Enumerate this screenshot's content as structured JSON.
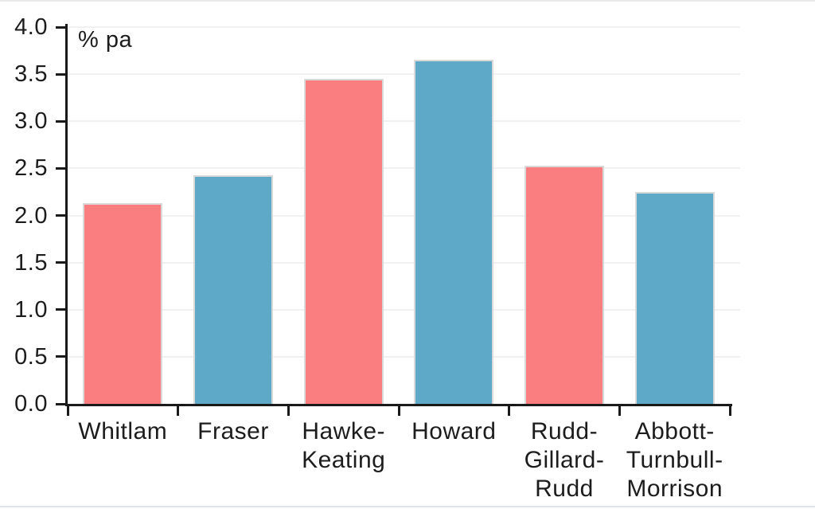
{
  "chart_data": {
    "type": "bar",
    "title": "",
    "unit_label": "% pa",
    "xlabel": "",
    "ylabel": "% pa",
    "categories": [
      "Whitlam",
      "Fraser",
      "Hawke-Keating",
      "Howard",
      "Rudd-Gillard-Rudd",
      "Abbott-Turnbull-Morrison"
    ],
    "tick_label_lines": [
      [
        "Whitlam"
      ],
      [
        "Fraser"
      ],
      [
        "Hawke-",
        "Keating"
      ],
      [
        "Howard"
      ],
      [
        "Rudd-",
        "Gillard-",
        "Rudd"
      ],
      [
        "Abbott-",
        "Turnbull-",
        "Morrison"
      ]
    ],
    "values": [
      2.13,
      2.43,
      3.45,
      3.65,
      2.53,
      2.25
    ],
    "bar_colors": [
      "#FA7D7F",
      "#5FA9C8",
      "#FA7D7F",
      "#5FA9C8",
      "#FA7D7F",
      "#5FA9C8"
    ],
    "bar_border_color": "#D9D9D9",
    "ylim": [
      0,
      4.0
    ],
    "ytick_labels": [
      "0.0",
      "0.5",
      "1.0",
      "1.5",
      "2.0",
      "2.5",
      "3.0",
      "3.5",
      "4.0"
    ],
    "yticks": [
      0,
      0.5,
      1.0,
      1.5,
      2.0,
      2.5,
      3.0,
      3.5,
      4.0
    ],
    "grid": "horizontal faint gridlines at each 0.5 step",
    "legend": "none",
    "axis_color": "#1a1a1a",
    "gridline_color": "#F2F0F1",
    "frame_top_color": "#E9E9E9",
    "frame_bottom_color": "#DEE4EB"
  }
}
